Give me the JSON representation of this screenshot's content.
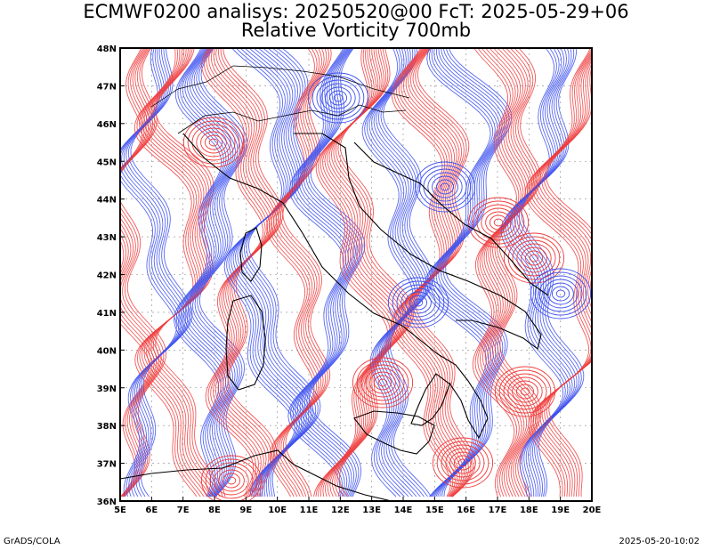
{
  "title_line1": "ECMWF0200 analisys: 20250520@00 FcT: 2025-05-29+06",
  "title_line2": "Relative Vorticity 700mb",
  "footer_left": "GrADS/COLA",
  "footer_right": "2025-05-20-10:02",
  "map": {
    "lon_range": [
      5,
      20
    ],
    "lat_range": [
      36,
      48
    ],
    "lon_ticks": [
      "5E",
      "6E",
      "7E",
      "8E",
      "9E",
      "10E",
      "11E",
      "12E",
      "13E",
      "14E",
      "15E",
      "16E",
      "17E",
      "18E",
      "19E",
      "20E"
    ],
    "lat_ticks": [
      "36N",
      "37N",
      "38N",
      "39N",
      "40N",
      "41N",
      "42N",
      "43N",
      "44N",
      "45N",
      "46N",
      "47N",
      "48N"
    ],
    "positive_color": "#f03c3c",
    "negative_color": "#3c50f0",
    "coastline_color": "#000000"
  }
}
